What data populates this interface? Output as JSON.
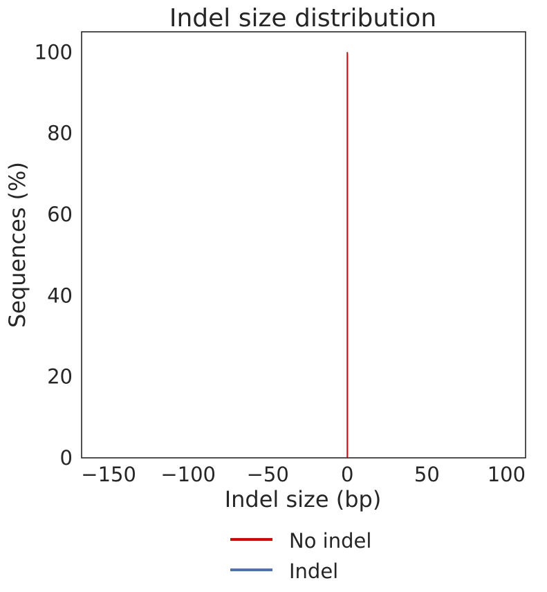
{
  "chart_data": {
    "type": "bar",
    "title": "Indel size distribution",
    "xlabel": "Indel size (bp)",
    "ylabel": "Sequences (%)",
    "xlim": [
      -167,
      112
    ],
    "ylim": [
      0,
      105
    ],
    "xticks": [
      -150,
      -100,
      -50,
      0,
      50,
      100
    ],
    "xtick_labels": [
      "−150",
      "−100",
      "−50",
      "0",
      "50",
      "100"
    ],
    "yticks": [
      0,
      20,
      40,
      60,
      80,
      100
    ],
    "ytick_labels": [
      "0",
      "20",
      "40",
      "60",
      "80",
      "100"
    ],
    "grid": false,
    "legend_position": "bottom-center",
    "series": [
      {
        "name": "No indel",
        "color": "#e00000",
        "x": [
          0
        ],
        "values": [
          100
        ]
      },
      {
        "name": "Indel",
        "color": "#4c72b0",
        "x": [],
        "values": []
      }
    ]
  }
}
